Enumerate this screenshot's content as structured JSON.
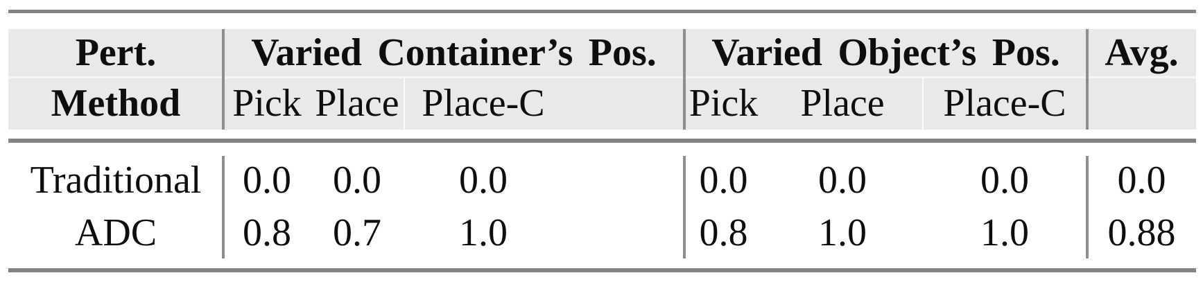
{
  "table": {
    "style": {
      "header_bg": "#e9e9e9",
      "rule_color": "#828282",
      "divider_color": "#8e8e8e",
      "row_separator_color": "#f6f6f6",
      "text_color": "#0e0e0e"
    },
    "header": {
      "method_line1": "Pert.",
      "method_line2": "Method",
      "group_container": "Varied Container’s Pos.",
      "group_object": "Varied Object’s Pos.",
      "avg": "Avg.",
      "subcolumns": [
        "Pick",
        "Place",
        "Place-C"
      ]
    },
    "rows": [
      {
        "method": "Traditional",
        "container_pick": "0.0",
        "container_place": "0.0",
        "container_place_c": "0.0",
        "object_pick": "0.0",
        "object_place": "0.0",
        "object_place_c": "0.0",
        "avg": "0.0"
      },
      {
        "method": "ADC",
        "container_pick": "0.8",
        "container_place": "0.7",
        "container_place_c": "1.0",
        "object_pick": "0.8",
        "object_place": "1.0",
        "object_place_c": "1.0",
        "avg": "0.88"
      }
    ]
  }
}
